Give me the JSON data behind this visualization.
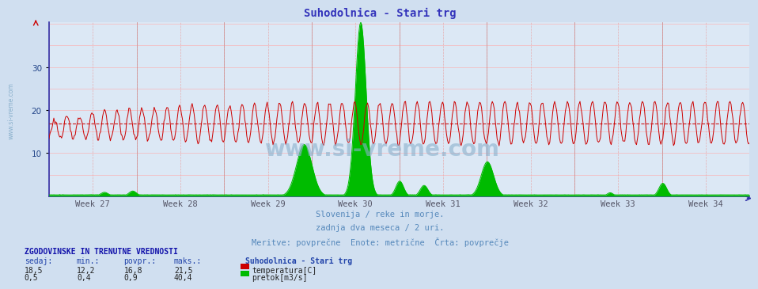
{
  "title": "Suhodolnica - Stari trg",
  "title_color": "#3333bb",
  "bg_color": "#d0dff0",
  "plot_bg_color": "#dce8f5",
  "grid_color_v": "#ddaaaa",
  "grid_color_h": "#ffaaaa",
  "x_tick_labels": [
    "Week 27",
    "Week 28",
    "Week 29",
    "Week 30",
    "Week 31",
    "Week 32",
    "Week 33",
    "Week 34"
  ],
  "y_ticks": [
    10,
    20,
    30
  ],
  "ylim_max": 40.4,
  "temp_color": "#cc0000",
  "flow_color": "#00bb00",
  "avg_line_color": "#cc0000",
  "avg_value": 16.8,
  "temp_min": 12.2,
  "temp_max": 21.5,
  "temp_avg": 16.8,
  "temp_current": 18.5,
  "flow_min": 0.4,
  "flow_max": 40.4,
  "flow_avg": 0.9,
  "flow_current": 0.5,
  "subtitle1": "Slovenija / reke in morje.",
  "subtitle2": "zadnja dva meseca / 2 uri.",
  "subtitle3": "Meritve: povprečne  Enote: metrične  Črta: povprečje",
  "subtitle_color": "#5588bb",
  "watermark": "www.si-vreme.com",
  "watermark_color": "#8ab0cc",
  "left_label": "www.si-vreme.com",
  "left_label_color": "#8ab0cc",
  "n_points": 720,
  "weeks": 8,
  "spine_color": "#3333aa"
}
